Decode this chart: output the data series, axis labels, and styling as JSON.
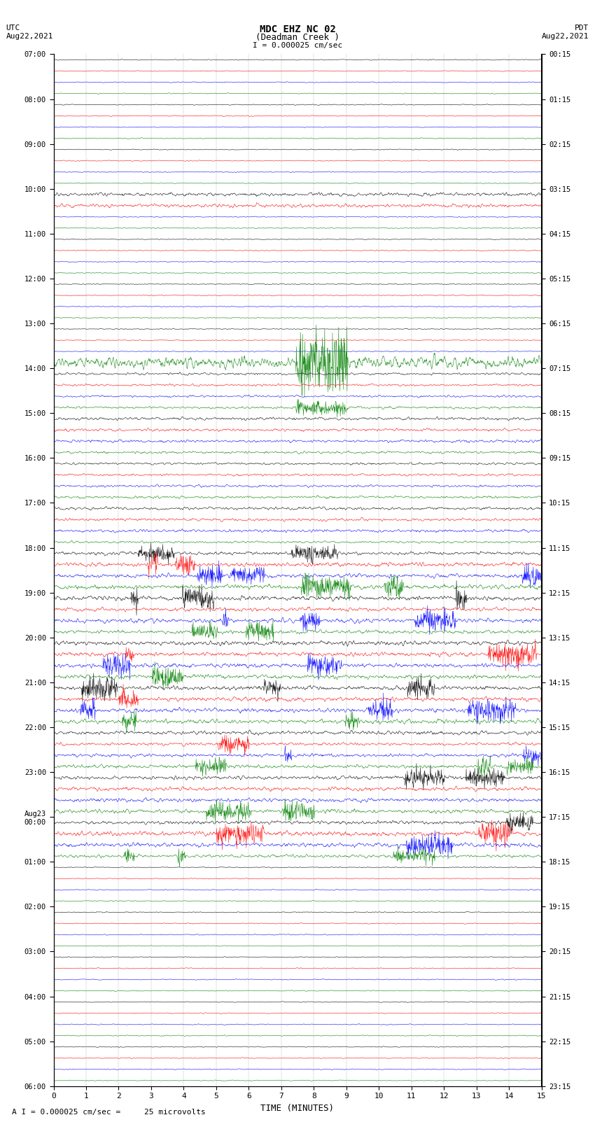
{
  "title_line1": "MDC EHZ NC 02",
  "title_line2": "(Deadman Creek )",
  "scale_label": "I = 0.000025 cm/sec",
  "utc_label": "UTC\nAug22,2021",
  "pdt_label": "PDT\nAug22,2021",
  "bottom_label": "A I = 0.000025 cm/sec =     25 microvolts",
  "xlabel": "TIME (MINUTES)",
  "left_times": [
    "07:00",
    "",
    "",
    "",
    "08:00",
    "",
    "",
    "",
    "09:00",
    "",
    "",
    "",
    "10:00",
    "",
    "",
    "",
    "11:00",
    "",
    "",
    "",
    "12:00",
    "",
    "",
    "",
    "13:00",
    "",
    "",
    "",
    "14:00",
    "",
    "",
    "",
    "15:00",
    "",
    "",
    "",
    "16:00",
    "",
    "",
    "",
    "17:00",
    "",
    "",
    "",
    "18:00",
    "",
    "",
    "",
    "19:00",
    "",
    "",
    "",
    "20:00",
    "",
    "",
    "",
    "21:00",
    "",
    "",
    "",
    "22:00",
    "",
    "",
    "",
    "23:00",
    "",
    "",
    "",
    "Aug23\n00:00",
    "",
    "",
    "",
    "01:00",
    "",
    "",
    "",
    "02:00",
    "",
    "",
    "",
    "03:00",
    "",
    "",
    "",
    "04:00",
    "",
    "",
    "",
    "05:00",
    "",
    "",
    "",
    "06:00",
    "",
    "",
    ""
  ],
  "right_times": [
    "00:15",
    "",
    "",
    "",
    "01:15",
    "",
    "",
    "",
    "02:15",
    "",
    "",
    "",
    "03:15",
    "",
    "",
    "",
    "04:15",
    "",
    "",
    "",
    "05:15",
    "",
    "",
    "",
    "06:15",
    "",
    "",
    "",
    "07:15",
    "",
    "",
    "",
    "08:15",
    "",
    "",
    "",
    "09:15",
    "",
    "",
    "",
    "10:15",
    "",
    "",
    "",
    "11:15",
    "",
    "",
    "",
    "12:15",
    "",
    "",
    "",
    "13:15",
    "",
    "",
    "",
    "14:15",
    "",
    "",
    "",
    "15:15",
    "",
    "",
    "",
    "16:15",
    "",
    "",
    "",
    "17:15",
    "",
    "",
    "",
    "18:15",
    "",
    "",
    "",
    "19:15",
    "",
    "",
    "",
    "20:15",
    "",
    "",
    "",
    "21:15",
    "",
    "",
    "",
    "22:15",
    "",
    "",
    "",
    "23:15",
    "",
    "",
    ""
  ],
  "n_rows": 92,
  "n_minutes": 15,
  "colors_cycle": [
    "black",
    "red",
    "blue",
    "green"
  ],
  "bg_color": "white",
  "trace_amplitude": 0.35,
  "noise_base": 0.04,
  "figsize": [
    8.5,
    16.13
  ],
  "dpi": 100
}
